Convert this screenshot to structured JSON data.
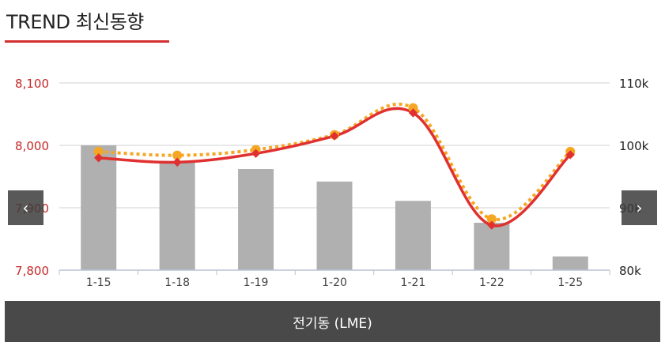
{
  "header": {
    "title": "TREND 최신동향"
  },
  "nav": {
    "prev_glyph": "‹",
    "next_glyph": "›"
  },
  "footer": {
    "label": "전기동 (LME)"
  },
  "chart_data": {
    "type": "bar+line",
    "categories": [
      "1-15",
      "1-18",
      "1-19",
      "1-20",
      "1-21",
      "1-22",
      "1-25"
    ],
    "y_left": {
      "ticks": [
        "8,100",
        "8,000",
        "7,900",
        "7,800"
      ],
      "min": 7800,
      "max": 8100
    },
    "y_right": {
      "ticks": [
        "110k",
        "100k",
        "90k",
        "80k"
      ],
      "min": 80,
      "max": 110
    },
    "series": [
      {
        "kind": "bar",
        "axis": "right",
        "color": "#b0b0b0",
        "values": [
          100.0,
          97.5,
          96.2,
          94.2,
          91.1,
          87.6,
          82.2
        ]
      },
      {
        "kind": "line-dotted",
        "axis": "left",
        "color": "#f5a623",
        "values": [
          7990,
          7984,
          7993,
          8017,
          8060,
          7882,
          7990
        ]
      },
      {
        "kind": "line",
        "axis": "left",
        "color": "#e03030",
        "values": [
          7980,
          7973,
          7987,
          8015,
          8052,
          7872,
          7985
        ]
      }
    ],
    "grid": true
  }
}
